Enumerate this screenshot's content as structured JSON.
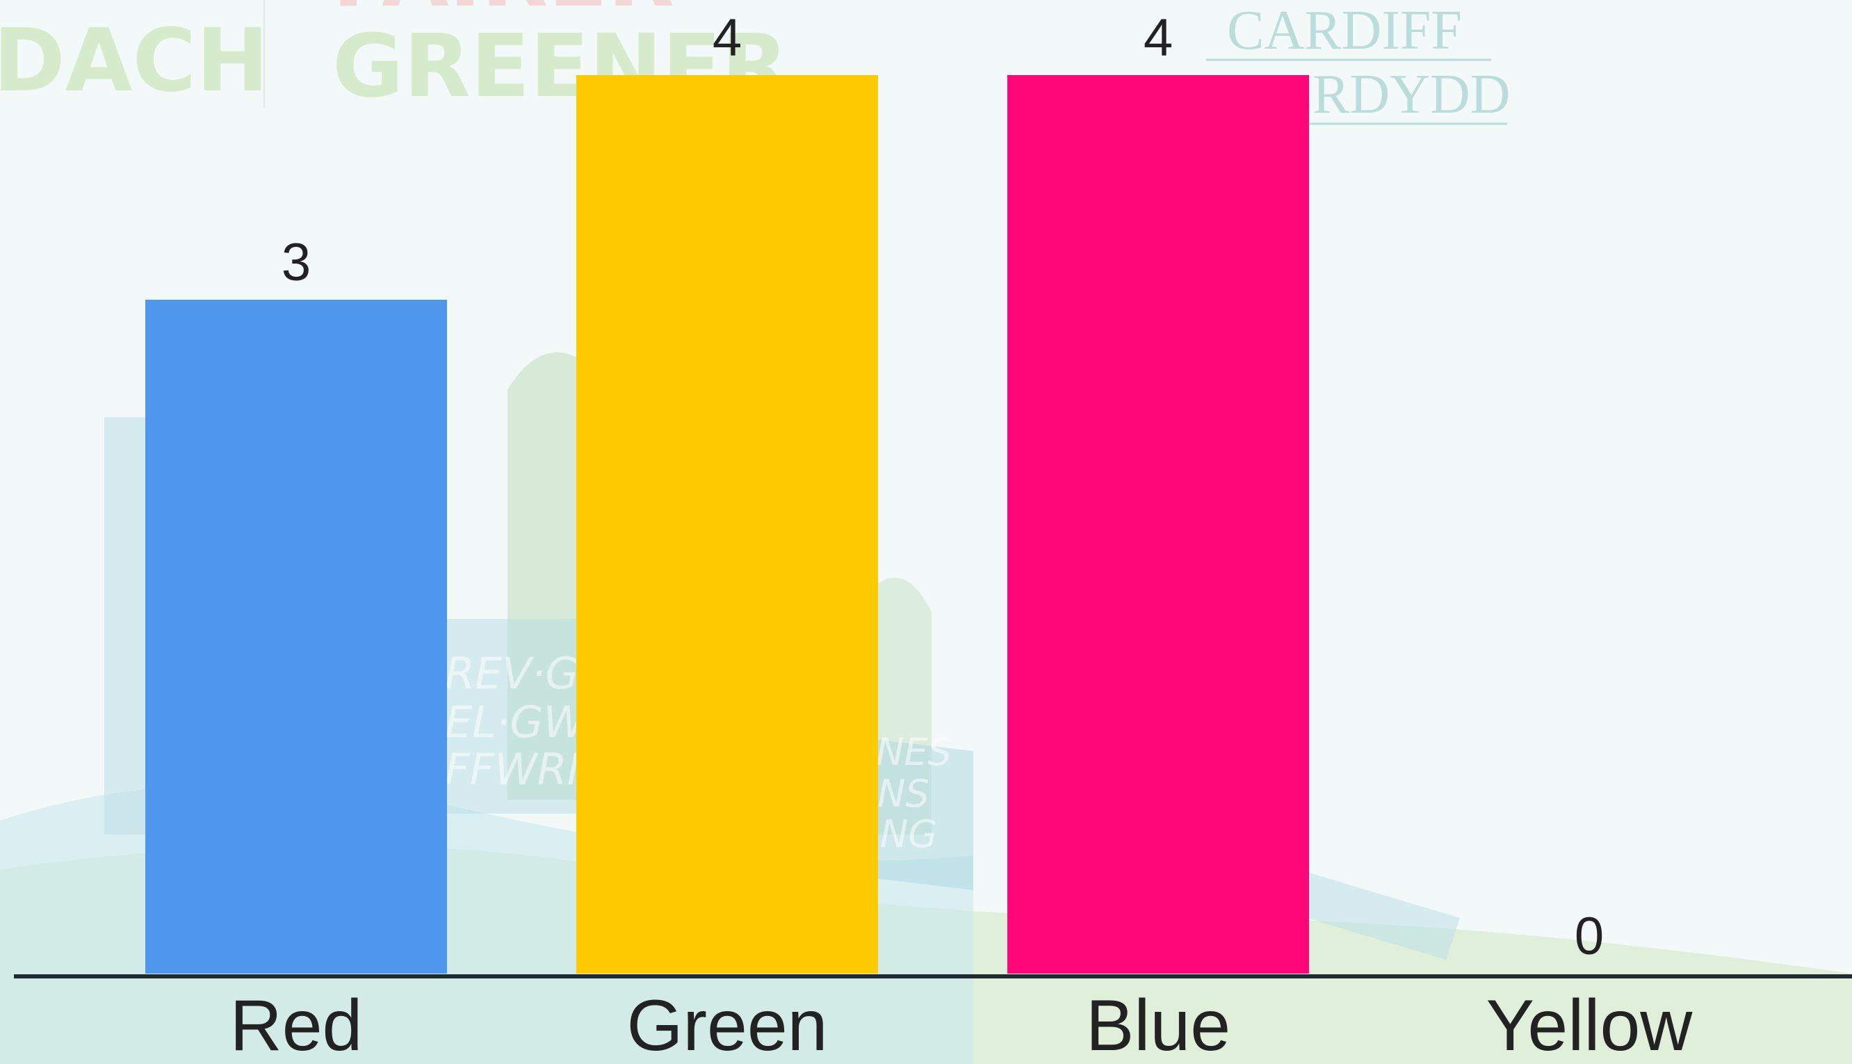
{
  "background": {
    "wordmark_left": "DACH",
    "wordmark_center_top": "FAIRER",
    "wordmark_center": "GREENER",
    "logo_line1": "CARDIFF",
    "logo_line2": "CAERDYDD",
    "sign_text_lines": [
      "REV·GW",
      "EL·GWY",
      "FFWRN"
    ],
    "sign2_text_lines": [
      "NES",
      "NS",
      "NG"
    ]
  },
  "colors": {
    "page_bg": "#f4f8f8",
    "axis": "#1f2a33",
    "label_text": "#222222"
  },
  "chart_data": {
    "type": "bar",
    "categories": [
      "Red",
      "Green",
      "Blue",
      "Yellow"
    ],
    "values": [
      3,
      4,
      4,
      0
    ],
    "value_labels": [
      "3",
      "4",
      "4",
      "0"
    ],
    "colors": [
      "#4f97ec",
      "#ffcb00",
      "#ff0679",
      "#ffffff"
    ],
    "title": "",
    "xlabel": "",
    "ylabel": "",
    "ylim": [
      0,
      4
    ],
    "grid": false,
    "legend": "none"
  }
}
